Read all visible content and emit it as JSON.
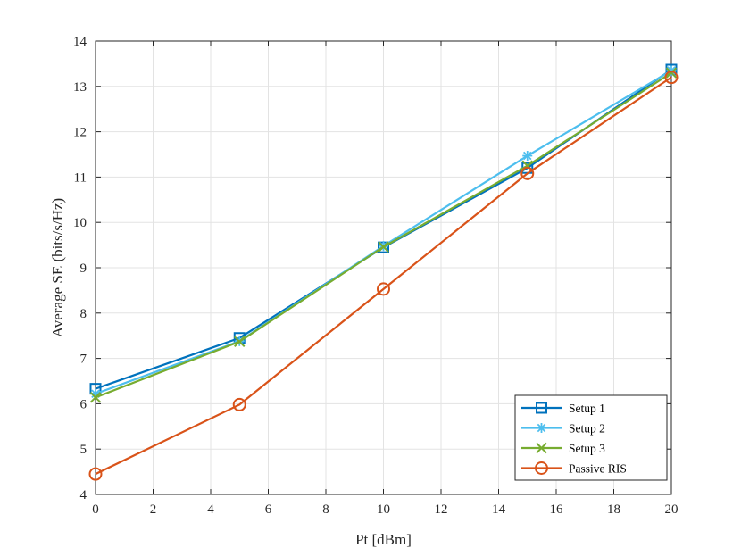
{
  "chart_data": {
    "type": "line",
    "xlabel": "Pt [dBm]",
    "ylabel": "Average SE (bits/s/Hz)",
    "xlim": [
      0,
      20
    ],
    "ylim": [
      4,
      14
    ],
    "xticks": [
      0,
      2,
      4,
      6,
      8,
      10,
      12,
      14,
      16,
      18,
      20
    ],
    "yticks": [
      4,
      5,
      6,
      7,
      8,
      9,
      10,
      11,
      12,
      13,
      14
    ],
    "grid": true,
    "legend_position": "bottom-right",
    "x": [
      0,
      5,
      10,
      15,
      20
    ],
    "series": [
      {
        "name": "Setup 1",
        "values": [
          6.33,
          7.45,
          9.45,
          11.2,
          13.37
        ],
        "color": "#0072BD",
        "marker": "square"
      },
      {
        "name": "Setup 2",
        "values": [
          6.22,
          7.38,
          9.48,
          11.47,
          13.35
        ],
        "color": "#4DBEEE",
        "marker": "asterisk"
      },
      {
        "name": "Setup 3",
        "values": [
          6.14,
          7.37,
          9.46,
          11.25,
          13.3
        ],
        "color": "#77AC30",
        "marker": "x"
      },
      {
        "name": "Passive RIS",
        "values": [
          4.45,
          5.98,
          8.53,
          11.08,
          13.2
        ],
        "color": "#D95319",
        "marker": "circle"
      }
    ]
  }
}
